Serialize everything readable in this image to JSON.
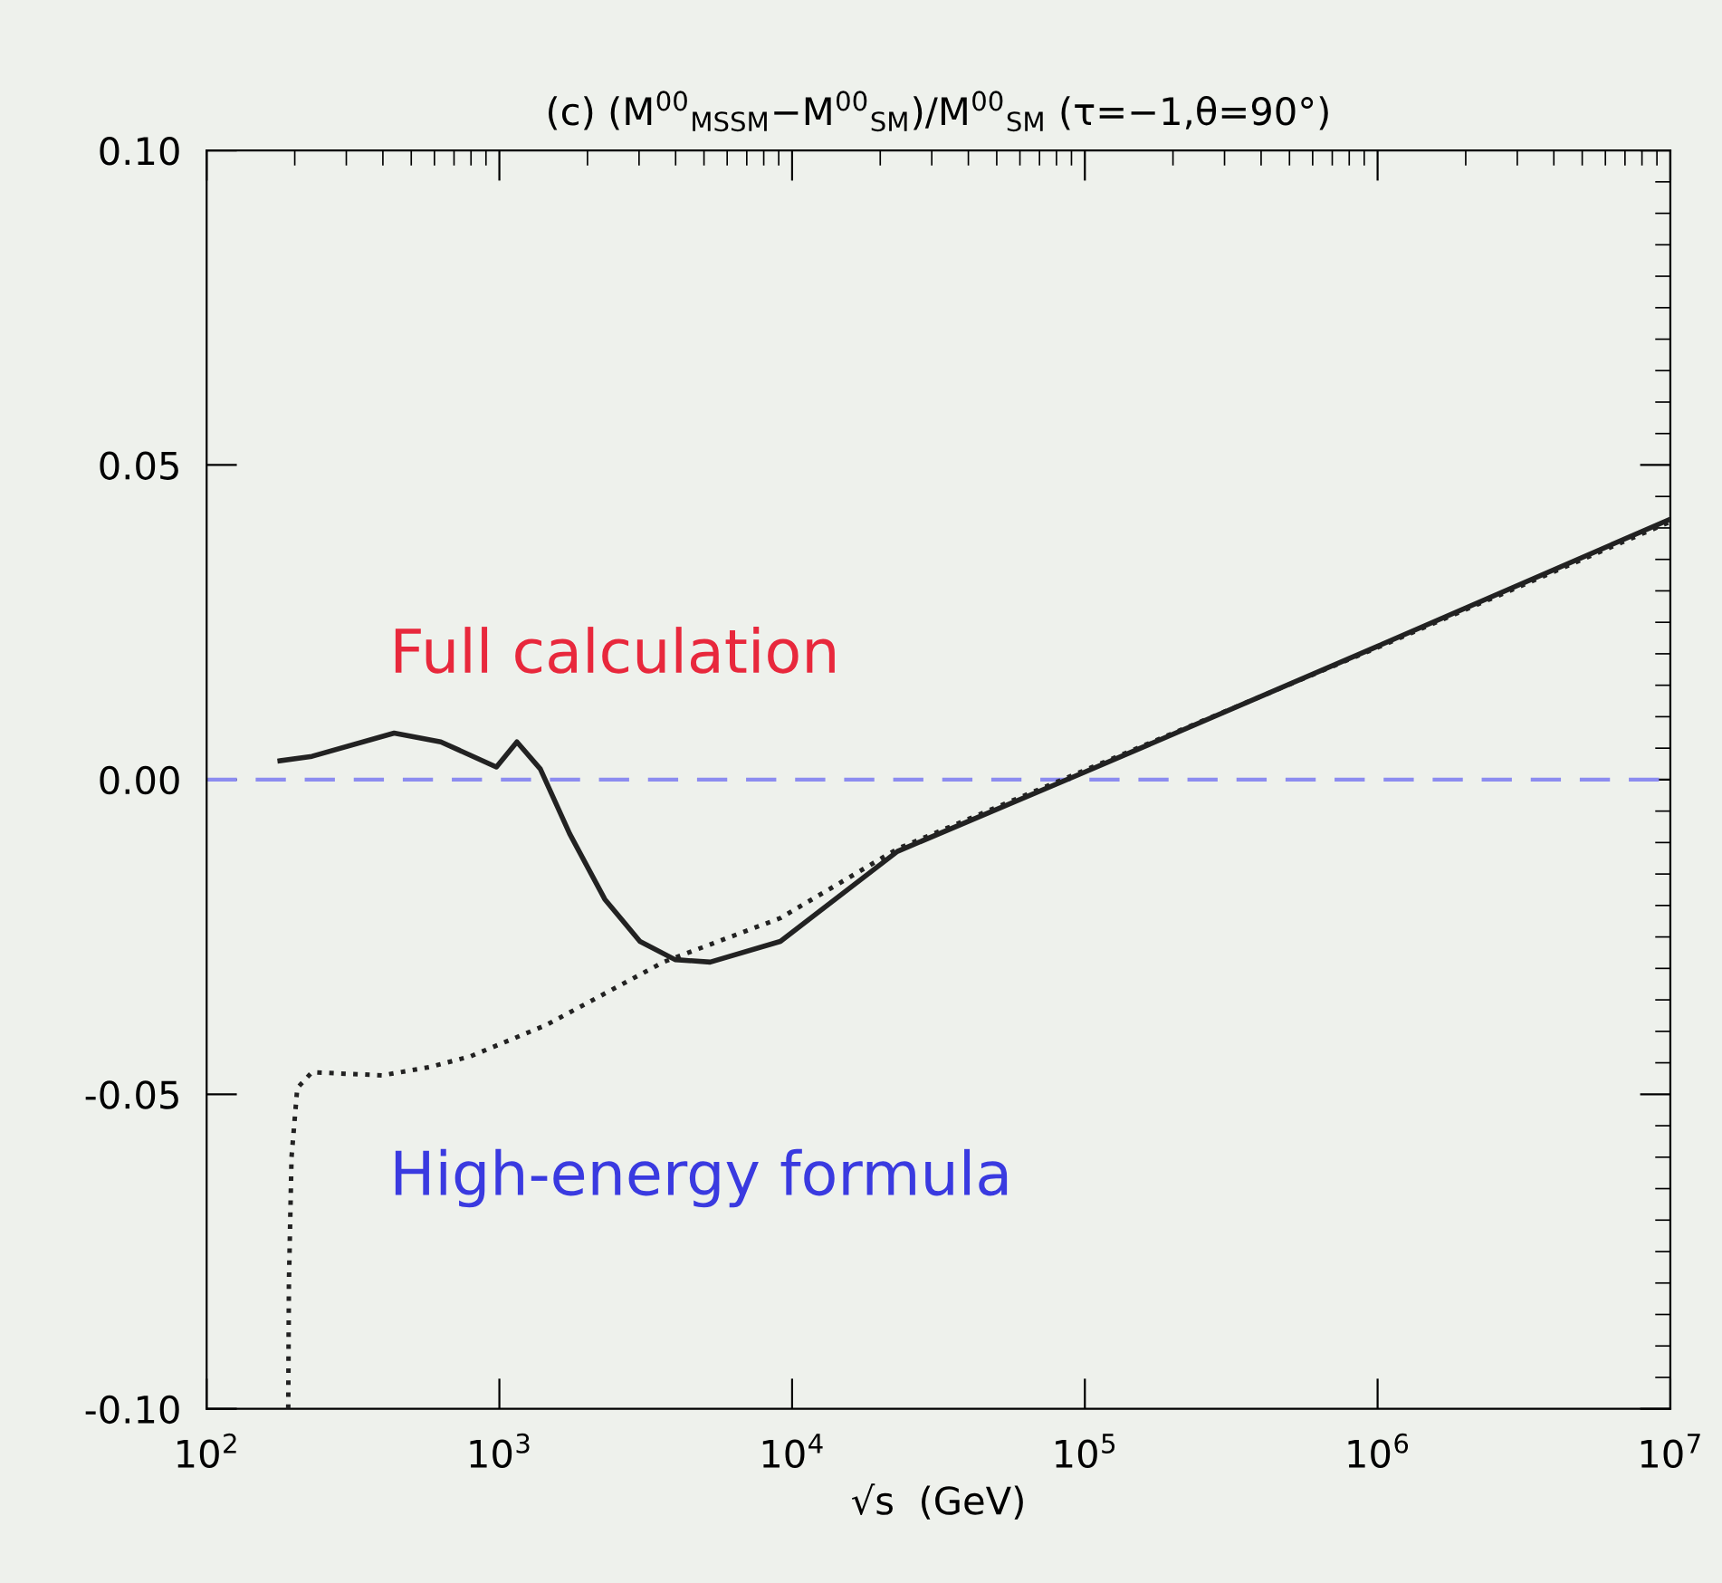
{
  "chart_data": {
    "type": "line",
    "title": "(c) (M$^{00}$$_{MSSM}$−M$^{00}$$_{SM}$)/M$^{00}$$_{SM}$ (τ=−1,θ=90°)",
    "xlabel": "√s  (GeV)",
    "log": "x",
    "xlim": [
      100,
      10000000
    ],
    "xticks": [
      {
        "value": 100,
        "label": "10$^{2}$"
      },
      {
        "value": 1000,
        "label": "10$^{3}$"
      },
      {
        "value": 10000,
        "label": "10$^{4}$"
      },
      {
        "value": 100000,
        "label": "10$^{5}$"
      },
      {
        "value": 1000000,
        "label": "10$^{6}$"
      },
      {
        "value": 10000000,
        "label": "10$^{7}$"
      }
    ],
    "ylim": [
      -0.1,
      0.1
    ],
    "yticks": [
      {
        "value": -0.1,
        "label": "-0.10"
      },
      {
        "value": -0.05,
        "label": "-0.05"
      },
      {
        "value": 0,
        "label": "0.00"
      },
      {
        "value": 0.05,
        "label": "0.05"
      },
      {
        "value": 0.1,
        "label": "0.10"
      }
    ],
    "grid": false,
    "legend": false,
    "marker": "none",
    "ref_lines": [
      {
        "axis": "y",
        "value": 0,
        "color": "#8c8cf0",
        "line_style": "dashed"
      }
    ],
    "series": [
      {
        "name": "Full calculation",
        "color": "#222222",
        "line_style": "solid",
        "x": [
          178,
          229,
          437,
          631,
          977,
          1148,
          1380,
          1738,
          2291,
          3020,
          3981,
          5248,
          9120,
          22900,
          100000,
          1000000,
          10000000
        ],
        "values": [
          0.003,
          0.0037,
          0.0074,
          0.006,
          0.002,
          0.006,
          0.0017,
          -0.0086,
          -0.019,
          -0.0257,
          -0.0286,
          -0.029,
          -0.0257,
          -0.0114,
          0.0012,
          0.0212,
          0.0414
        ]
      },
      {
        "name": "High-energy formula",
        "color": "#222222",
        "line_style": "dotted",
        "x": [
          190,
          191,
          195,
          204,
          229,
          398,
          575,
          794,
          1445,
          3631,
          9120,
          22900,
          100000,
          1000000,
          10000000
        ],
        "values": [
          -0.1,
          -0.08,
          -0.06,
          -0.049,
          -0.0465,
          -0.047,
          -0.0457,
          -0.044,
          -0.039,
          -0.029,
          -0.022,
          -0.011,
          0.0015,
          0.021,
          0.041
        ]
      }
    ]
  }
}
